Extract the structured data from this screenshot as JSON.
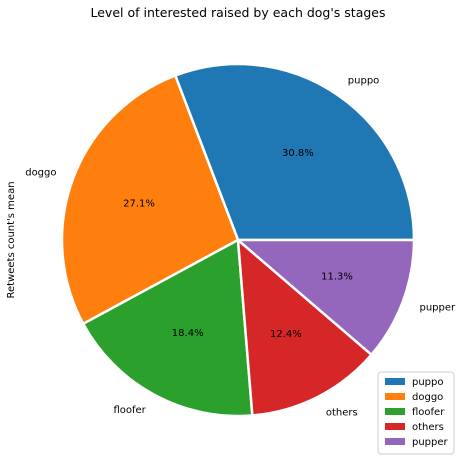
{
  "chart_data": {
    "type": "pie",
    "title": "Level of interested raised by each dog's stages",
    "ylabel": "Retweets count's mean",
    "categories": [
      "puppo",
      "doggo",
      "floofer",
      "others",
      "pupper"
    ],
    "values": [
      30.8,
      27.1,
      18.4,
      12.4,
      11.3
    ],
    "percent_labels": [
      "30.8%",
      "27.1%",
      "18.4%",
      "12.4%",
      "11.3%"
    ],
    "colors": [
      "#1f77b4",
      "#ff7f0e",
      "#2ca02c",
      "#d62728",
      "#9467bd"
    ],
    "start_angle_deg": 0,
    "direction": "counterclockwise",
    "legend": {
      "placement": "lower-right",
      "entries": [
        "puppo",
        "doggo",
        "floofer",
        "others",
        "pupper"
      ]
    }
  }
}
